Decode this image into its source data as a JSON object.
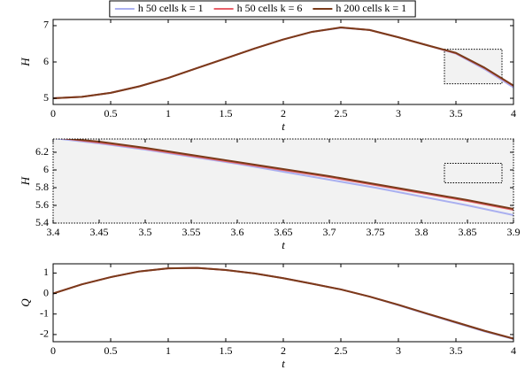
{
  "chart_data": [
    {
      "type": "line",
      "legend": "top",
      "xlabel": "t",
      "ylabel": "H",
      "x": [
        0,
        0.25,
        0.5,
        0.75,
        1,
        1.25,
        1.5,
        1.75,
        2,
        2.25,
        2.5,
        2.75,
        3,
        3.25,
        3.5,
        3.75,
        4
      ],
      "xlim": [
        0,
        4
      ],
      "xticks": [
        0,
        0.5,
        1,
        1.5,
        2,
        2.5,
        3,
        3.5,
        4
      ],
      "ylim": [
        4.83,
        7.17
      ],
      "yticks": [
        5,
        6,
        7
      ],
      "series": [
        {
          "name": "h 50 cells k = 1",
          "color": "#aab0f0",
          "values": [
            5.0,
            5.04,
            5.15,
            5.33,
            5.56,
            5.83,
            6.1,
            6.37,
            6.62,
            6.83,
            6.94,
            6.88,
            6.68,
            6.46,
            6.23,
            5.8,
            5.3
          ]
        },
        {
          "name": "h 50 cells k = 6",
          "color": "#e8606a",
          "values": [
            5.0,
            5.04,
            5.15,
            5.33,
            5.56,
            5.83,
            6.1,
            6.37,
            6.62,
            6.83,
            6.95,
            6.88,
            6.68,
            6.46,
            6.24,
            5.83,
            5.34
          ]
        },
        {
          "name": "h 200 cells k = 1",
          "color": "#7a3b1a",
          "values": [
            5.0,
            5.04,
            5.15,
            5.33,
            5.56,
            5.83,
            6.1,
            6.37,
            6.62,
            6.83,
            6.95,
            6.88,
            6.68,
            6.46,
            6.25,
            5.84,
            5.35
          ]
        }
      ]
    },
    {
      "type": "line",
      "xlabel": "t",
      "ylabel": "H",
      "background": "#f2f2f2",
      "frame": "dotted",
      "x": [
        3.4,
        3.45,
        3.5,
        3.55,
        3.6,
        3.65,
        3.7,
        3.75,
        3.8,
        3.85,
        3.9
      ],
      "xlim": [
        3.4,
        3.9
      ],
      "xticks": [
        3.4,
        3.45,
        3.5,
        3.55,
        3.6,
        3.65,
        3.7,
        3.75,
        3.8,
        3.85,
        3.9
      ],
      "ylim": [
        5.4,
        6.35
      ],
      "yticks": [
        5.4,
        5.6,
        5.8,
        6,
        6.2
      ],
      "series": [
        {
          "color": "#aab0f0",
          "values": [
            6.36,
            6.3,
            6.23,
            6.15,
            6.07,
            5.98,
            5.89,
            5.8,
            5.7,
            5.6,
            5.49
          ]
        },
        {
          "color": "#e8606a",
          "values": [
            6.37,
            6.31,
            6.24,
            6.16,
            6.08,
            6.0,
            5.92,
            5.83,
            5.74,
            5.65,
            5.55
          ]
        },
        {
          "color": "#7a3b1a",
          "values": [
            6.37,
            6.32,
            6.25,
            6.17,
            6.09,
            6.01,
            5.93,
            5.84,
            5.75,
            5.66,
            5.56
          ]
        }
      ]
    },
    {
      "type": "line",
      "xlabel": "t",
      "ylabel": "Q",
      "x": [
        0,
        0.25,
        0.5,
        0.75,
        1,
        1.25,
        1.5,
        1.75,
        2,
        2.25,
        2.5,
        2.75,
        3,
        3.25,
        3.5,
        3.75,
        4
      ],
      "xlim": [
        0,
        4
      ],
      "xticks": [
        0,
        0.5,
        1,
        1.5,
        2,
        2.5,
        3,
        3.5,
        4
      ],
      "ylim": [
        -2.35,
        1.45
      ],
      "yticks": [
        -2,
        -1,
        0,
        1
      ],
      "series": [
        {
          "color": "#aab0f0",
          "values": [
            0,
            0.45,
            0.8,
            1.08,
            1.23,
            1.25,
            1.15,
            0.98,
            0.75,
            0.48,
            0.2,
            -0.15,
            -0.57,
            -1.0,
            -1.43,
            -1.85,
            -2.22
          ]
        },
        {
          "color": "#e8606a",
          "values": [
            0,
            0.45,
            0.8,
            1.08,
            1.23,
            1.25,
            1.15,
            0.98,
            0.75,
            0.48,
            0.2,
            -0.15,
            -0.55,
            -0.98,
            -1.4,
            -1.82,
            -2.2
          ]
        },
        {
          "color": "#7a3b1a",
          "values": [
            0,
            0.45,
            0.8,
            1.08,
            1.23,
            1.25,
            1.15,
            0.98,
            0.75,
            0.48,
            0.2,
            -0.15,
            -0.55,
            -0.98,
            -1.4,
            -1.82,
            -2.2
          ]
        }
      ]
    }
  ]
}
